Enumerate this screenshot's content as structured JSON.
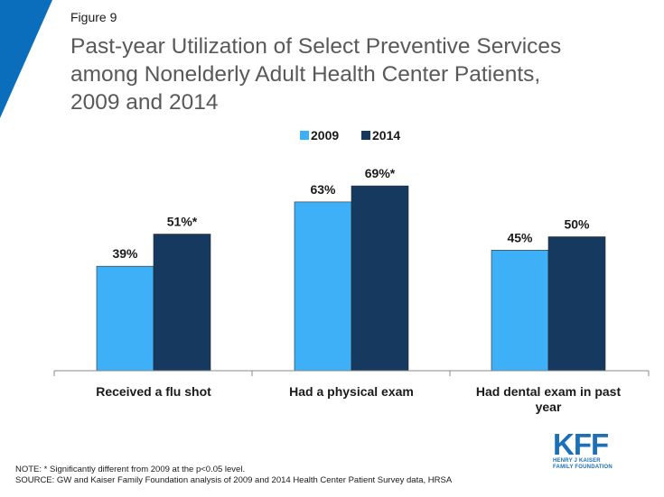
{
  "header": {
    "figure_label": "Figure 9",
    "title_lines": [
      "Past-year Utilization of Select Preventive Services",
      "among Nonelderly Adult Health Center Patients,",
      "2009 and 2014"
    ]
  },
  "chart_data": {
    "type": "bar",
    "title": "Past-year Utilization of Select Preventive Services among Nonelderly Adult Health Center Patients, 2009 and 2014",
    "categories": [
      "Received a flu shot",
      "Had a physical exam",
      "Had dental exam in past year"
    ],
    "category_label_lines": [
      [
        "Received a flu shot"
      ],
      [
        "Had a physical exam"
      ],
      [
        "Had dental exam in past",
        "year"
      ]
    ],
    "series": [
      {
        "name": "2009",
        "color": "#3db0f7",
        "values": [
          39,
          63,
          45
        ],
        "labels": [
          "39%",
          "63%",
          "45%"
        ]
      },
      {
        "name": "2014",
        "color": "#163a5f",
        "values": [
          51,
          69,
          50
        ],
        "labels": [
          "51%*",
          "69%*",
          "50%"
        ]
      }
    ],
    "ylim": [
      0,
      80
    ],
    "xlabel": "",
    "ylabel": "",
    "grid": false,
    "legend_position": "top-center"
  },
  "footer": {
    "note": "NOTE: * Significantly different from 2009 at the p<0.05 level.",
    "source": "SOURCE: GW and Kaiser Family Foundation analysis of 2009 and 2014 Health Center Patient Survey data, HRSA",
    "logo_mark": "KFF",
    "logo_sub_lines": [
      "HENRY J KAISER",
      "FAMILY FOUNDATION"
    ]
  },
  "colors": {
    "corner_accent": "#0a6ebd",
    "bar_2009": "#3db0f7",
    "bar_2014": "#163a5f",
    "axis": "#888888"
  }
}
